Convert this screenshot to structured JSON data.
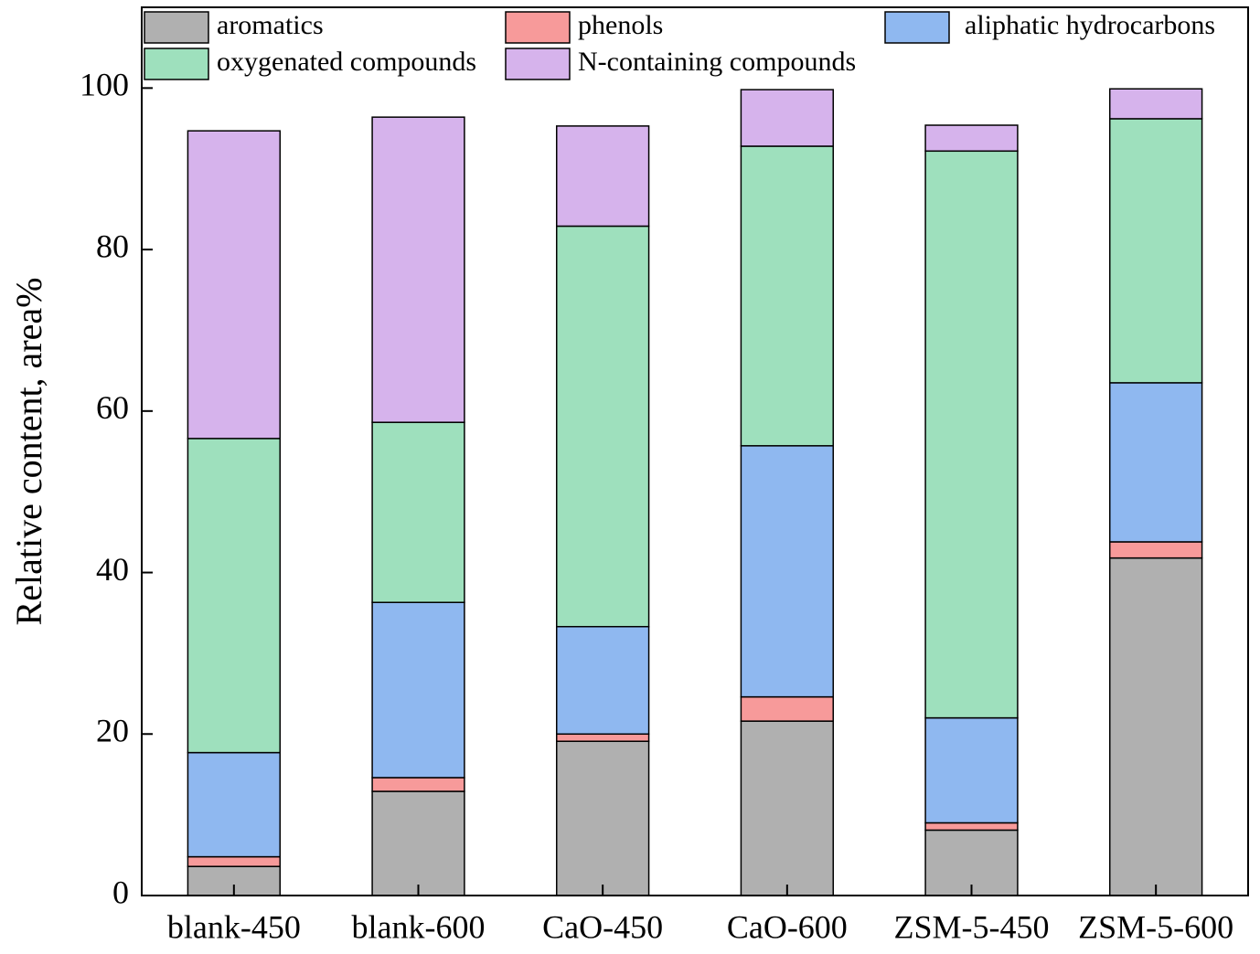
{
  "chart_data": {
    "type": "stacked-bar",
    "y_label": "Relative content, area%",
    "categories": [
      "blank-450",
      "blank-600",
      "CaO-450",
      "CaO-600",
      "ZSM-5-450",
      "ZSM-5-600"
    ],
    "series": [
      {
        "name": "aromatics",
        "color": "#b0b0b0",
        "values": [
          3.6,
          12.9,
          19.1,
          21.6,
          8.1,
          41.8
        ]
      },
      {
        "name": "phenols",
        "color": "#f79a9a",
        "values": [
          1.2,
          1.7,
          0.9,
          3.0,
          0.9,
          2.0
        ]
      },
      {
        "name": "aliphatic hydrocarbons",
        "color": "#8fb8f0",
        "values": [
          12.9,
          21.7,
          13.3,
          31.1,
          13.0,
          19.7
        ]
      },
      {
        "name": "oxygenated compounds",
        "color": "#9ee0bd",
        "values": [
          38.9,
          22.3,
          49.6,
          37.1,
          70.2,
          32.7
        ]
      },
      {
        "name": "N-containing compounds",
        "color": "#d6b3ec",
        "values": [
          38.1,
          37.8,
          12.4,
          7.0,
          3.2,
          3.7
        ]
      }
    ],
    "ylim": [
      0,
      110
    ],
    "yticks": [
      0,
      20,
      40,
      60,
      80,
      100
    ],
    "grid": false,
    "legend": "top"
  }
}
